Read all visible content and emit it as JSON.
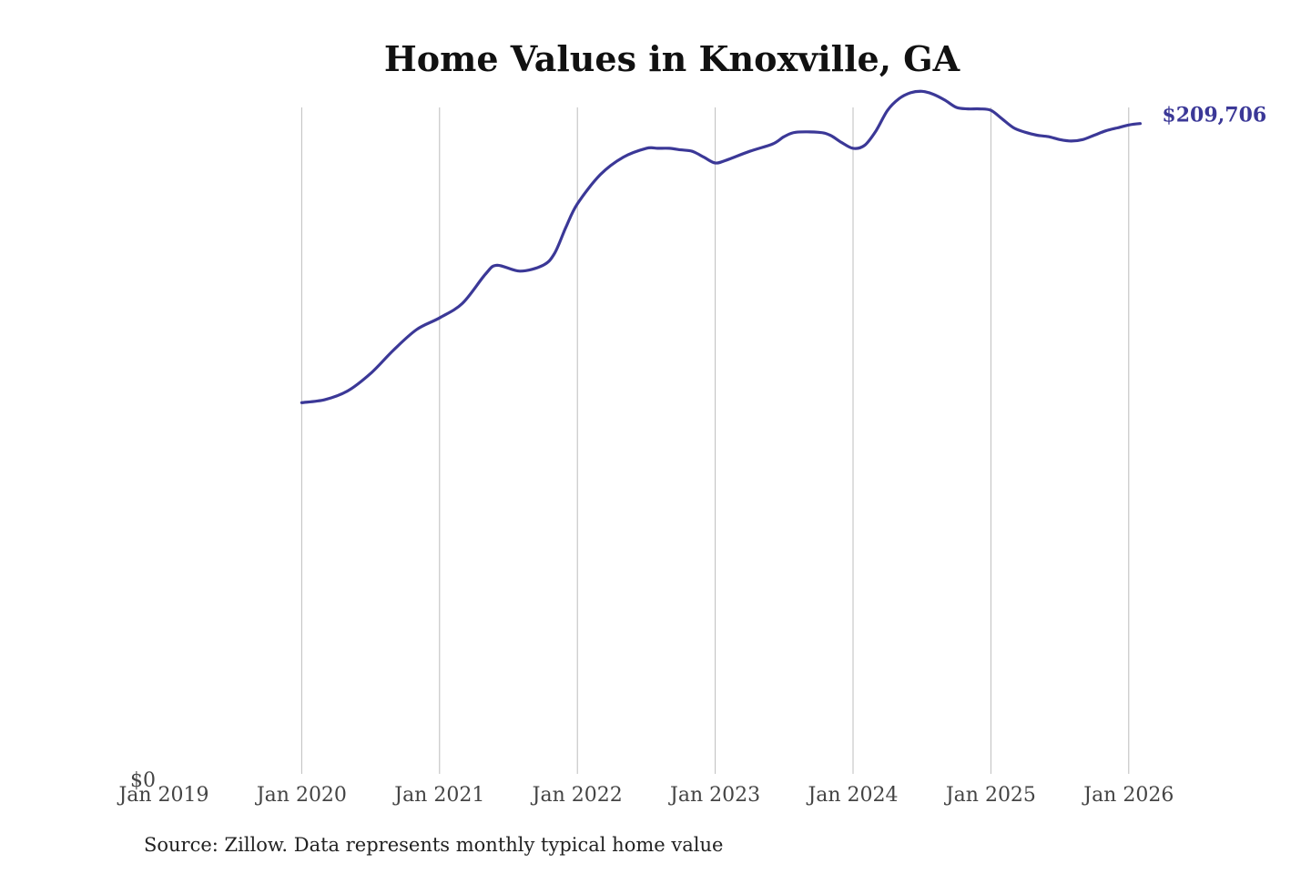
{
  "chart_data": {
    "type": "line",
    "title": "Home Values in Knoxville, GA",
    "source_note": "Source: Zillow. Data represents monthly typical home value",
    "xlabel": "",
    "ylabel": "",
    "x_ticks": [
      "Jan 2019",
      "Jan 2020",
      "Jan 2021",
      "Jan 2022",
      "Jan 2023",
      "Jan 2024",
      "Jan 2025",
      "Jan 2026"
    ],
    "y_ticks": [
      "$0"
    ],
    "ylim": [
      0,
      228000
    ],
    "grid": "vertical",
    "line_color": "#3b3897",
    "end_label": "$209,706",
    "series": [
      {
        "x": [
          "2020-01",
          "2020-03",
          "2020-05",
          "2020-07",
          "2020-09",
          "2020-11",
          "2021-01",
          "2021-03",
          "2021-05",
          "2021-06",
          "2021-08",
          "2021-10",
          "2021-11",
          "2021-12",
          "2022-01",
          "2022-03",
          "2022-05",
          "2022-07",
          "2022-08",
          "2022-09",
          "2022-10",
          "2022-11",
          "2022-12",
          "2023-01",
          "2023-02",
          "2023-04",
          "2023-06",
          "2023-07",
          "2023-08",
          "2023-10",
          "2023-11",
          "2023-12",
          "2024-01",
          "2024-02",
          "2024-03",
          "2024-04",
          "2024-05",
          "2024-06",
          "2024-07",
          "2024-08",
          "2024-09",
          "2024-10",
          "2024-11",
          "2024-12",
          "2025-01",
          "2025-02",
          "2025-03",
          "2025-04",
          "2025-05",
          "2025-06",
          "2025-07",
          "2025-08",
          "2025-09",
          "2025-10",
          "2025-11",
          "2025-12",
          "2026-01",
          "2026-02"
        ],
        "values": [
          127000,
          128000,
          131000,
          137000,
          145000,
          152000,
          156000,
          161000,
          171000,
          174000,
          172000,
          174000,
          178000,
          187000,
          195000,
          205000,
          211000,
          214000,
          214000,
          214000,
          213500,
          213000,
          211000,
          209000,
          210000,
          213000,
          215500,
          218000,
          219500,
          219500,
          218500,
          216000,
          214000,
          215000,
          220000,
          227000,
          231000,
          233000,
          233500,
          232500,
          230500,
          228000,
          227500,
          227500,
          227000,
          224000,
          221000,
          219500,
          218500,
          218000,
          217000,
          216500,
          217000,
          218500,
          220000,
          221000,
          222000,
          209706
        ]
      }
    ]
  }
}
